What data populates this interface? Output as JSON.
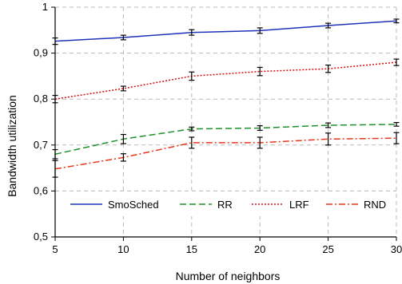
{
  "chart_data": {
    "type": "line",
    "xlabel": "Number of neighbors",
    "ylabel": "Bandwidth utilization",
    "x": [
      5,
      10,
      15,
      20,
      25,
      30
    ],
    "xlim": [
      5,
      30
    ],
    "ylim": [
      0.5,
      1
    ],
    "x_ticks": [
      "5",
      "10",
      "15",
      "20",
      "25",
      "30"
    ],
    "y_ticks": [
      "0,5",
      "0,6",
      "0,7",
      "0,8",
      "0,9",
      "1"
    ],
    "grid": true,
    "legend_position": "bottom",
    "series": [
      {
        "name": "SmoSched",
        "values": [
          0.926,
          0.934,
          0.945,
          0.949,
          0.96,
          0.97
        ],
        "errors": [
          0.007,
          0.005,
          0.006,
          0.006,
          0.005,
          0.004
        ],
        "color": "#2033b8",
        "dash": "solid"
      },
      {
        "name": "RR",
        "values": [
          0.68,
          0.713,
          0.735,
          0.737,
          0.743,
          0.745
        ],
        "errors": [
          0.01,
          0.01,
          0.004,
          0.005,
          0.005,
          0.004
        ],
        "color": "#20902a",
        "dash": "dash"
      },
      {
        "name": "LRF",
        "values": [
          0.8,
          0.823,
          0.85,
          0.86,
          0.866,
          0.88
        ],
        "errors": [
          0.008,
          0.005,
          0.009,
          0.009,
          0.008,
          0.007
        ],
        "color": "#d01010",
        "dash": "dot"
      },
      {
        "name": "RND",
        "values": [
          0.648,
          0.673,
          0.705,
          0.705,
          0.713,
          0.715
        ],
        "errors": [
          0.018,
          0.008,
          0.012,
          0.012,
          0.013,
          0.012
        ],
        "color": "#e8381c",
        "dash": "dashdot"
      }
    ]
  }
}
